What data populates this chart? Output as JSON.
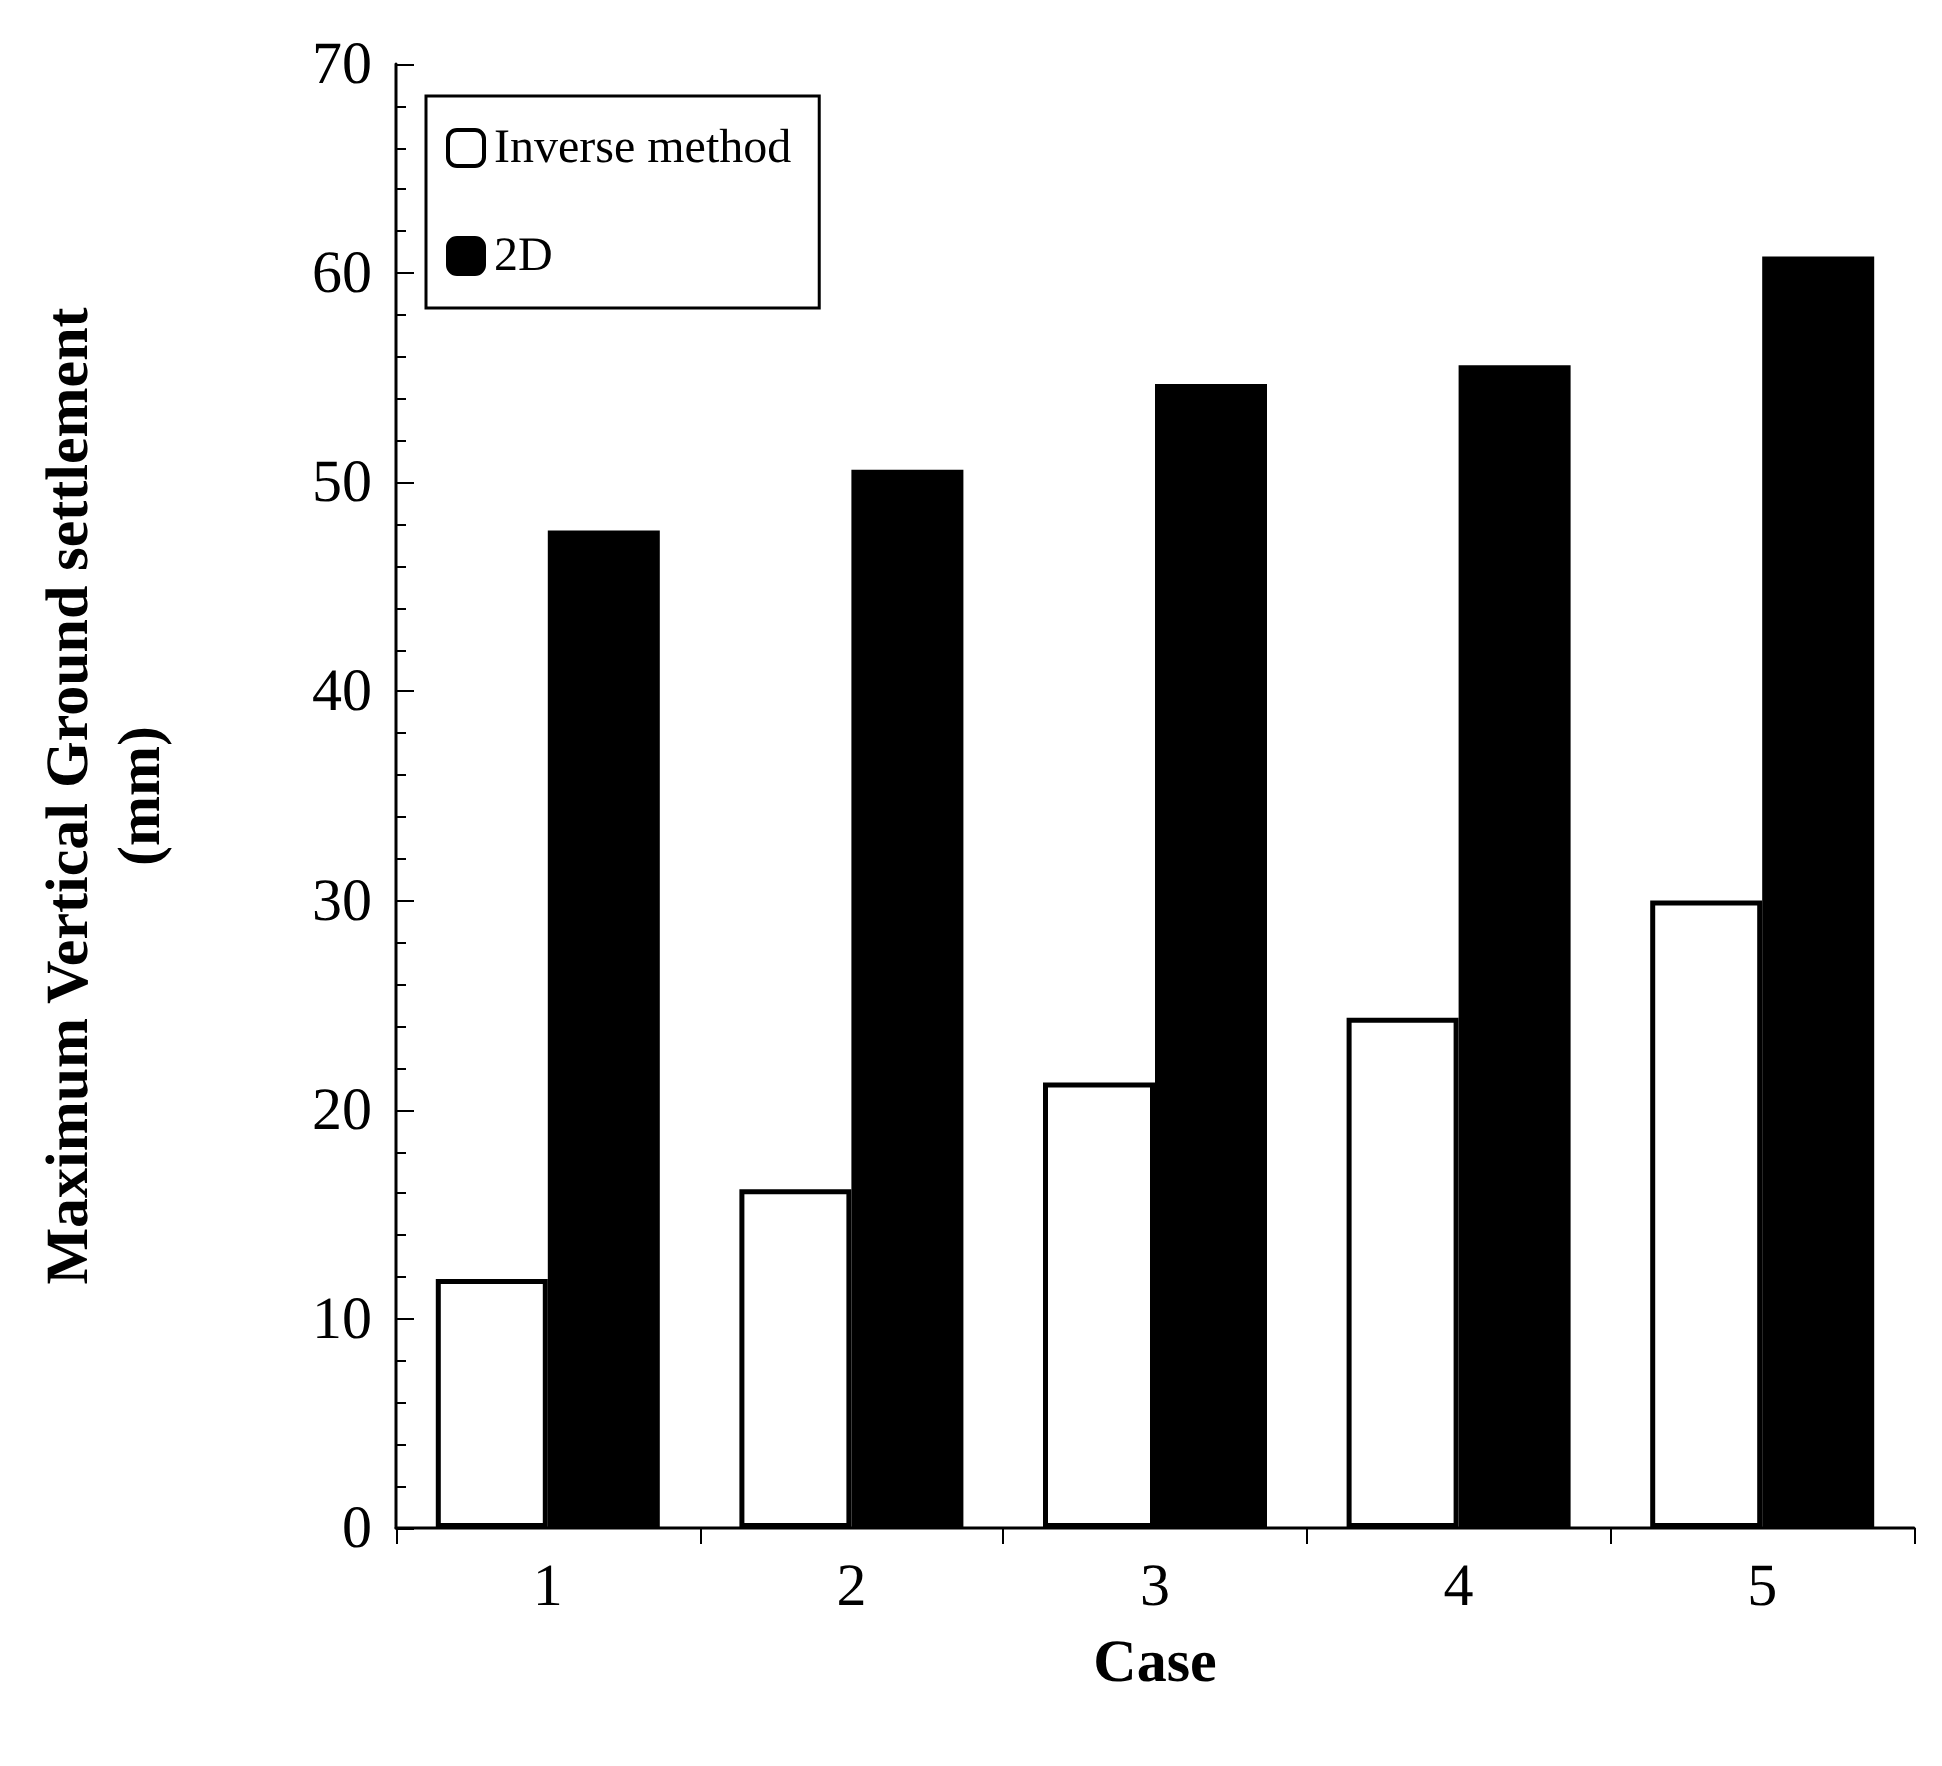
{
  "chart_data": {
    "type": "bar",
    "xlabel": "Case",
    "ylabel": "Maximum Vertical Ground settlement (mm)",
    "categories": [
      "1",
      "2",
      "3",
      "4",
      "5"
    ],
    "series": [
      {
        "name": "Inverse method",
        "color": "#ffffff",
        "values": [
          11.9,
          16.2,
          21.3,
          24.4,
          30.0
        ]
      },
      {
        "name": "2D",
        "color": "#000000",
        "values": [
          47.7,
          50.6,
          54.7,
          55.6,
          60.8
        ]
      }
    ],
    "ylim": [
      0,
      70
    ],
    "yticks": [
      0,
      10,
      20,
      30,
      40,
      50,
      60,
      70
    ],
    "grid": false,
    "legend": "top left"
  }
}
